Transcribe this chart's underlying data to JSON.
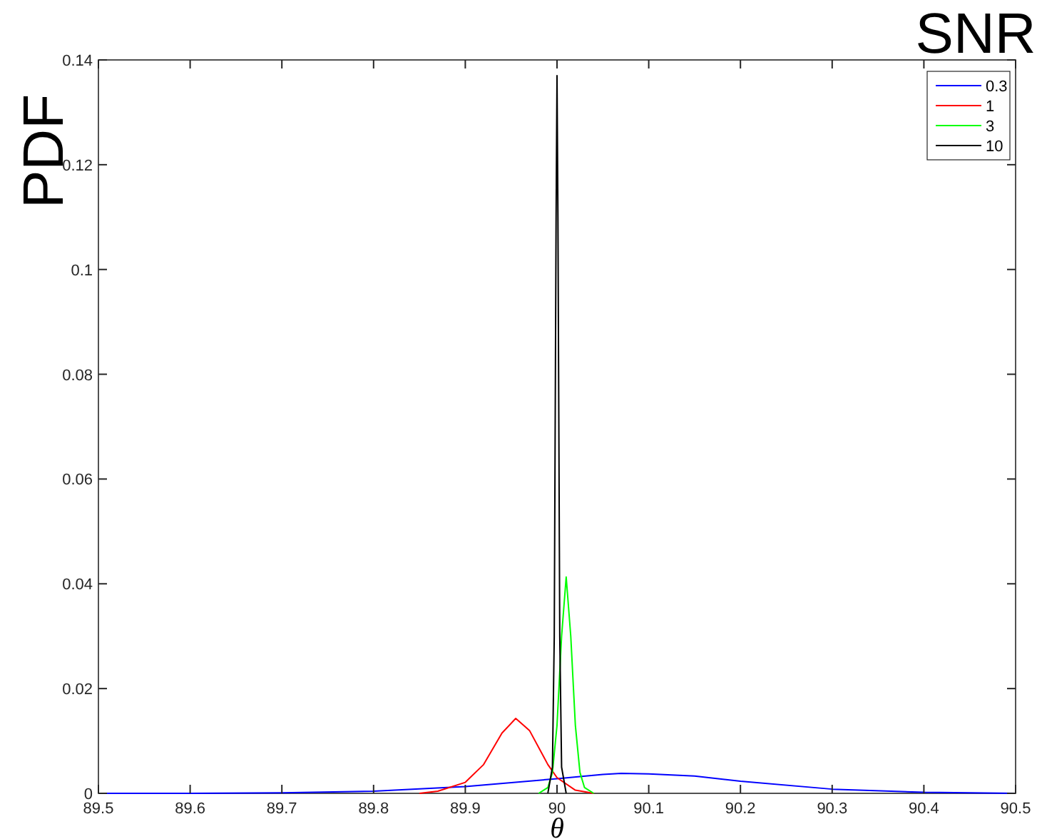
{
  "chart_data": {
    "type": "line",
    "xlabel": "θ",
    "ylabel": "PDF",
    "legend_title": "SNR",
    "xlim": [
      89.5,
      90.5
    ],
    "ylim": [
      0,
      0.14
    ],
    "xticks": [
      89.5,
      89.6,
      89.7,
      89.8,
      89.9,
      90,
      90.1,
      90.2,
      90.3,
      90.4,
      90.5
    ],
    "yticks": [
      0,
      0.02,
      0.04,
      0.06,
      0.08,
      0.1,
      0.12,
      0.14
    ],
    "grid": false,
    "legend": "top right",
    "marker": "none",
    "line_style": "solid",
    "series": [
      {
        "name": "0.3",
        "color": "#0000ff",
        "x": [
          89.5,
          89.6,
          89.7,
          89.8,
          89.9,
          90,
          90.05,
          90.07,
          90.1,
          90.15,
          90.2,
          90.3,
          90.4,
          90.5
        ],
        "values": [
          0,
          0,
          0.0001,
          0.0004,
          0.0013,
          0.0028,
          0.0036,
          0.0038,
          0.0037,
          0.0033,
          0.0023,
          0.0008,
          0.0002,
          0
        ]
      },
      {
        "name": "1",
        "color": "#ff0000",
        "x": [
          89.85,
          89.87,
          89.9,
          89.92,
          89.94,
          89.955,
          89.97,
          89.99,
          90,
          90.02,
          90.04
        ],
        "values": [
          0,
          0.0004,
          0.0021,
          0.0055,
          0.0115,
          0.0143,
          0.012,
          0.0055,
          0.003,
          0.0006,
          0
        ]
      },
      {
        "name": "3",
        "color": "#00ff00",
        "x": [
          89.98,
          89.99,
          89.995,
          90,
          90.005,
          90.01,
          90.015,
          90.02,
          90.025,
          90.03,
          90.04
        ],
        "values": [
          0,
          0.0011,
          0.004,
          0.013,
          0.03,
          0.0413,
          0.03,
          0.013,
          0.004,
          0.0011,
          0
        ]
      },
      {
        "name": "10",
        "color": "#000000",
        "x": [
          89.99,
          89.995,
          89.997,
          89.999,
          90,
          90.001,
          90.003,
          90.005,
          90.01
        ],
        "values": [
          0,
          0.005,
          0.03,
          0.11,
          0.137,
          0.11,
          0.03,
          0.005,
          0
        ]
      }
    ]
  }
}
